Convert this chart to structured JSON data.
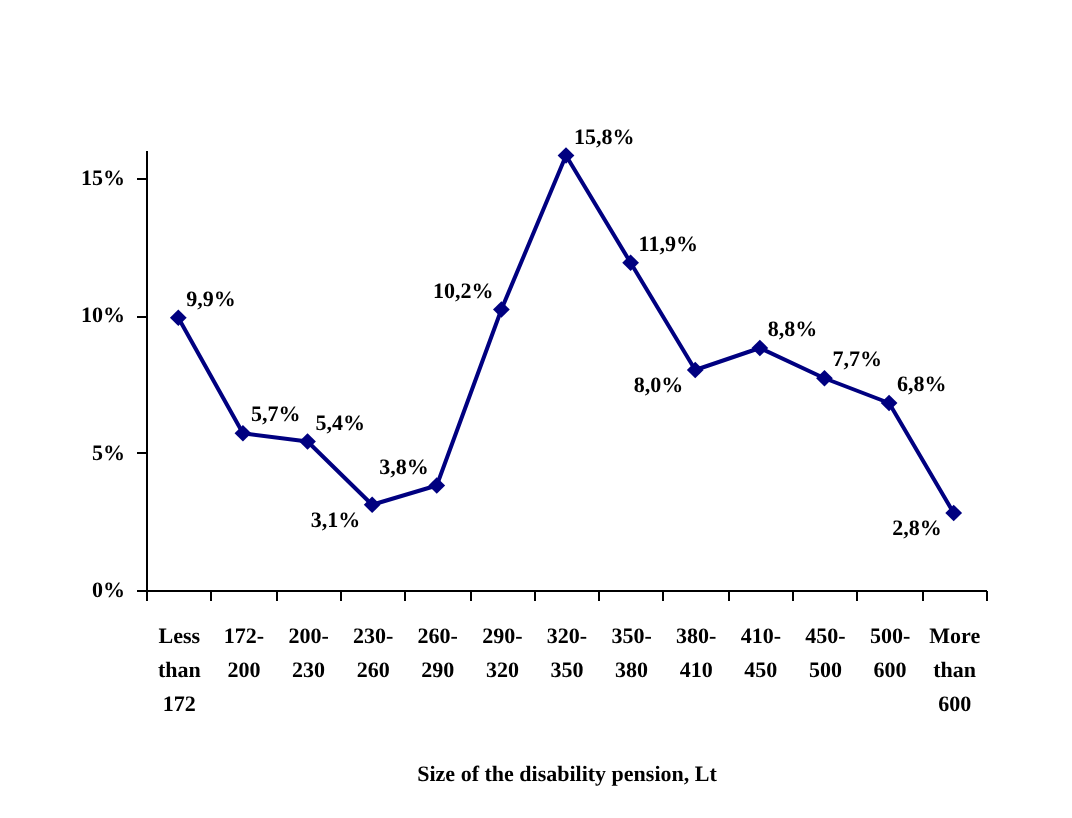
{
  "chart_data": {
    "type": "line",
    "xlabel": "Size of the disability pension, Lt",
    "categories": [
      "Less than 172",
      "172-200",
      "200-230",
      "230-260",
      "260-290",
      "290-320",
      "320-350",
      "350-380",
      "380-410",
      "410-450",
      "450-500",
      "500-600",
      "More than 600"
    ],
    "series": [
      {
        "color": "#000080",
        "values": [
          9.9,
          5.7,
          5.4,
          3.1,
          3.8,
          10.2,
          15.8,
          11.9,
          8.0,
          8.8,
          7.7,
          6.8,
          2.8
        ],
        "value_labels": [
          "9,9%",
          "5,7%",
          "5,4%",
          "3,1%",
          "3,8%",
          "10,2%",
          "15,8%",
          "11,9%",
          "8,0%",
          "8,8%",
          "7,7%",
          "6,8%",
          "2,8%"
        ]
      }
    ],
    "ylim": [
      0,
      16
    ],
    "yticks": [
      {
        "value": 0,
        "label": "0%"
      },
      {
        "value": 5,
        "label": "5%"
      },
      {
        "value": 10,
        "label": "10%"
      },
      {
        "value": 15,
        "label": "15%"
      }
    ],
    "grid": false,
    "marker": "diamond",
    "line_style": "solid"
  }
}
